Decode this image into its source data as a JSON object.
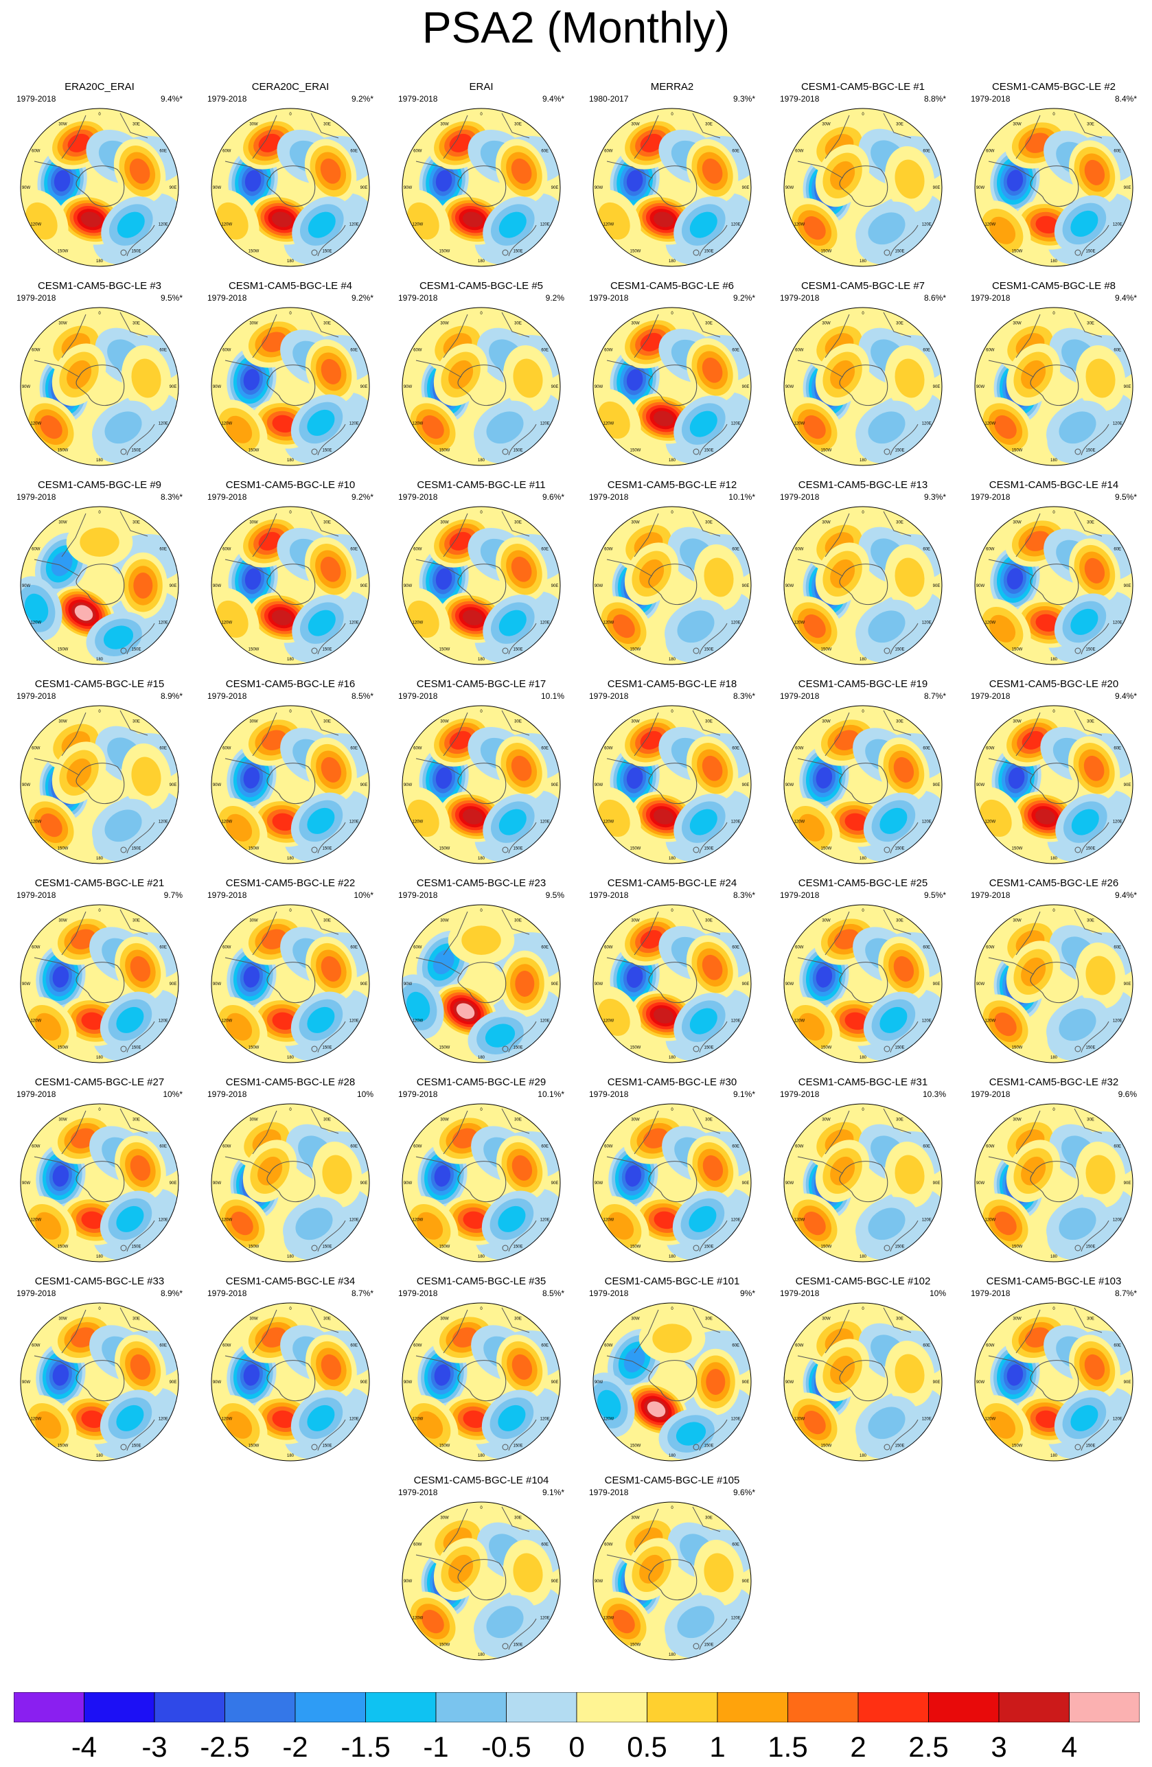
{
  "title": "PSA2 (Monthly)",
  "chart_data": {
    "type": "contour-map-grid",
    "title": "PSA2 (Monthly)",
    "projection": "south-polar-stereographic",
    "longitude_labels": [
      "0",
      "30E",
      "60E",
      "90E",
      "120E",
      "150E",
      "180",
      "150W",
      "120W",
      "90W",
      "60W",
      "30W"
    ],
    "colorbar": {
      "orientation": "horizontal",
      "position": "bottom",
      "tick_labels": [
        "-4",
        "-3",
        "-2.5",
        "-2",
        "-1.5",
        "-1",
        "-0.5",
        "0",
        "0.5",
        "1",
        "1.5",
        "2",
        "2.5",
        "3",
        "4"
      ],
      "colors": [
        "#8a1ff0",
        "#1c10f5",
        "#2f49e8",
        "#3477e8",
        "#2e9cf5",
        "#0fc2f2",
        "#7ac4ee",
        "#b3dcf2",
        "#fff493",
        "#ffd02f",
        "#ffa30c",
        "#ff6b16",
        "#ff3012",
        "#e80a0a",
        "#cc1a1a",
        "#fbb1b1"
      ]
    },
    "panels": [
      {
        "title": "ERA20C_ERAI",
        "years": "1979-2018",
        "pct": "9.4%*",
        "pattern": 1
      },
      {
        "title": "CERA20C_ERAI",
        "years": "1979-2018",
        "pct": "9.2%*",
        "pattern": 1
      },
      {
        "title": "ERAI",
        "years": "1979-2018",
        "pct": "9.4%*",
        "pattern": 1
      },
      {
        "title": "MERRA2",
        "years": "1980-2017",
        "pct": "9.3%*",
        "pattern": 1
      },
      {
        "title": "CESM1-CAM5-BGC-LE #1",
        "years": "1979-2018",
        "pct": "8.8%*",
        "pattern": 2
      },
      {
        "title": "CESM1-CAM5-BGC-LE #2",
        "years": "1979-2018",
        "pct": "8.4%*",
        "pattern": 0
      },
      {
        "title": "CESM1-CAM5-BGC-LE #3",
        "years": "1979-2018",
        "pct": "9.5%*",
        "pattern": 2
      },
      {
        "title": "CESM1-CAM5-BGC-LE #4",
        "years": "1979-2018",
        "pct": "9.2%*",
        "pattern": 0
      },
      {
        "title": "CESM1-CAM5-BGC-LE #5",
        "years": "1979-2018",
        "pct": "9.2%",
        "pattern": 2
      },
      {
        "title": "CESM1-CAM5-BGC-LE #6",
        "years": "1979-2018",
        "pct": "9.2%*",
        "pattern": 1
      },
      {
        "title": "CESM1-CAM5-BGC-LE #7",
        "years": "1979-2018",
        "pct": "8.6%*",
        "pattern": 2
      },
      {
        "title": "CESM1-CAM5-BGC-LE #8",
        "years": "1979-2018",
        "pct": "9.4%*",
        "pattern": 2
      },
      {
        "title": "CESM1-CAM5-BGC-LE #9",
        "years": "1979-2018",
        "pct": "8.3%*",
        "pattern": 3
      },
      {
        "title": "CESM1-CAM5-BGC-LE #10",
        "years": "1979-2018",
        "pct": "9.2%*",
        "pattern": 1
      },
      {
        "title": "CESM1-CAM5-BGC-LE #11",
        "years": "1979-2018",
        "pct": "9.6%*",
        "pattern": 1
      },
      {
        "title": "CESM1-CAM5-BGC-LE #12",
        "years": "1979-2018",
        "pct": "10.1%*",
        "pattern": 2
      },
      {
        "title": "CESM1-CAM5-BGC-LE #13",
        "years": "1979-2018",
        "pct": "9.3%*",
        "pattern": 2
      },
      {
        "title": "CESM1-CAM5-BGC-LE #14",
        "years": "1979-2018",
        "pct": "9.5%*",
        "pattern": 0
      },
      {
        "title": "CESM1-CAM5-BGC-LE #15",
        "years": "1979-2018",
        "pct": "8.9%*",
        "pattern": 2
      },
      {
        "title": "CESM1-CAM5-BGC-LE #16",
        "years": "1979-2018",
        "pct": "8.5%*",
        "pattern": 0
      },
      {
        "title": "CESM1-CAM5-BGC-LE #17",
        "years": "1979-2018",
        "pct": "10.1%",
        "pattern": 1
      },
      {
        "title": "CESM1-CAM5-BGC-LE #18",
        "years": "1979-2018",
        "pct": "8.3%*",
        "pattern": 1
      },
      {
        "title": "CESM1-CAM5-BGC-LE #19",
        "years": "1979-2018",
        "pct": "8.7%*",
        "pattern": 0
      },
      {
        "title": "CESM1-CAM5-BGC-LE #20",
        "years": "1979-2018",
        "pct": "9.4%*",
        "pattern": 1
      },
      {
        "title": "CESM1-CAM5-BGC-LE #21",
        "years": "1979-2018",
        "pct": "9.7%",
        "pattern": 0
      },
      {
        "title": "CESM1-CAM5-BGC-LE #22",
        "years": "1979-2018",
        "pct": "10%*",
        "pattern": 0
      },
      {
        "title": "CESM1-CAM5-BGC-LE #23",
        "years": "1979-2018",
        "pct": "9.5%",
        "pattern": 3
      },
      {
        "title": "CESM1-CAM5-BGC-LE #24",
        "years": "1979-2018",
        "pct": "8.3%*",
        "pattern": 1
      },
      {
        "title": "CESM1-CAM5-BGC-LE #25",
        "years": "1979-2018",
        "pct": "9.5%*",
        "pattern": 0
      },
      {
        "title": "CESM1-CAM5-BGC-LE #26",
        "years": "1979-2018",
        "pct": "9.4%*",
        "pattern": 2
      },
      {
        "title": "CESM1-CAM5-BGC-LE #27",
        "years": "1979-2018",
        "pct": "10%*",
        "pattern": 0
      },
      {
        "title": "CESM1-CAM5-BGC-LE #28",
        "years": "1979-2018",
        "pct": "10%",
        "pattern": 2
      },
      {
        "title": "CESM1-CAM5-BGC-LE #29",
        "years": "1979-2018",
        "pct": "10.1%*",
        "pattern": 0
      },
      {
        "title": "CESM1-CAM5-BGC-LE #30",
        "years": "1979-2018",
        "pct": "9.1%*",
        "pattern": 0
      },
      {
        "title": "CESM1-CAM5-BGC-LE #31",
        "years": "1979-2018",
        "pct": "10.3%",
        "pattern": 2
      },
      {
        "title": "CESM1-CAM5-BGC-LE #32",
        "years": "1979-2018",
        "pct": "9.6%",
        "pattern": 2
      },
      {
        "title": "CESM1-CAM5-BGC-LE #33",
        "years": "1979-2018",
        "pct": "8.9%*",
        "pattern": 0
      },
      {
        "title": "CESM1-CAM5-BGC-LE #34",
        "years": "1979-2018",
        "pct": "8.7%*",
        "pattern": 0
      },
      {
        "title": "CESM1-CAM5-BGC-LE #35",
        "years": "1979-2018",
        "pct": "8.5%*",
        "pattern": 0
      },
      {
        "title": "CESM1-CAM5-BGC-LE #101",
        "years": "1979-2018",
        "pct": "9%*",
        "pattern": 3
      },
      {
        "title": "CESM1-CAM5-BGC-LE #102",
        "years": "1979-2018",
        "pct": "10%",
        "pattern": 2
      },
      {
        "title": "CESM1-CAM5-BGC-LE #103",
        "years": "1979-2018",
        "pct": "8.7%*",
        "pattern": 0
      },
      {
        "title": "CESM1-CAM5-BGC-LE #104",
        "years": "1979-2018",
        "pct": "9.1%*",
        "pattern": 2
      },
      {
        "title": "CESM1-CAM5-BGC-LE #105",
        "years": "1979-2018",
        "pct": "9.6%*",
        "pattern": 2
      }
    ]
  }
}
